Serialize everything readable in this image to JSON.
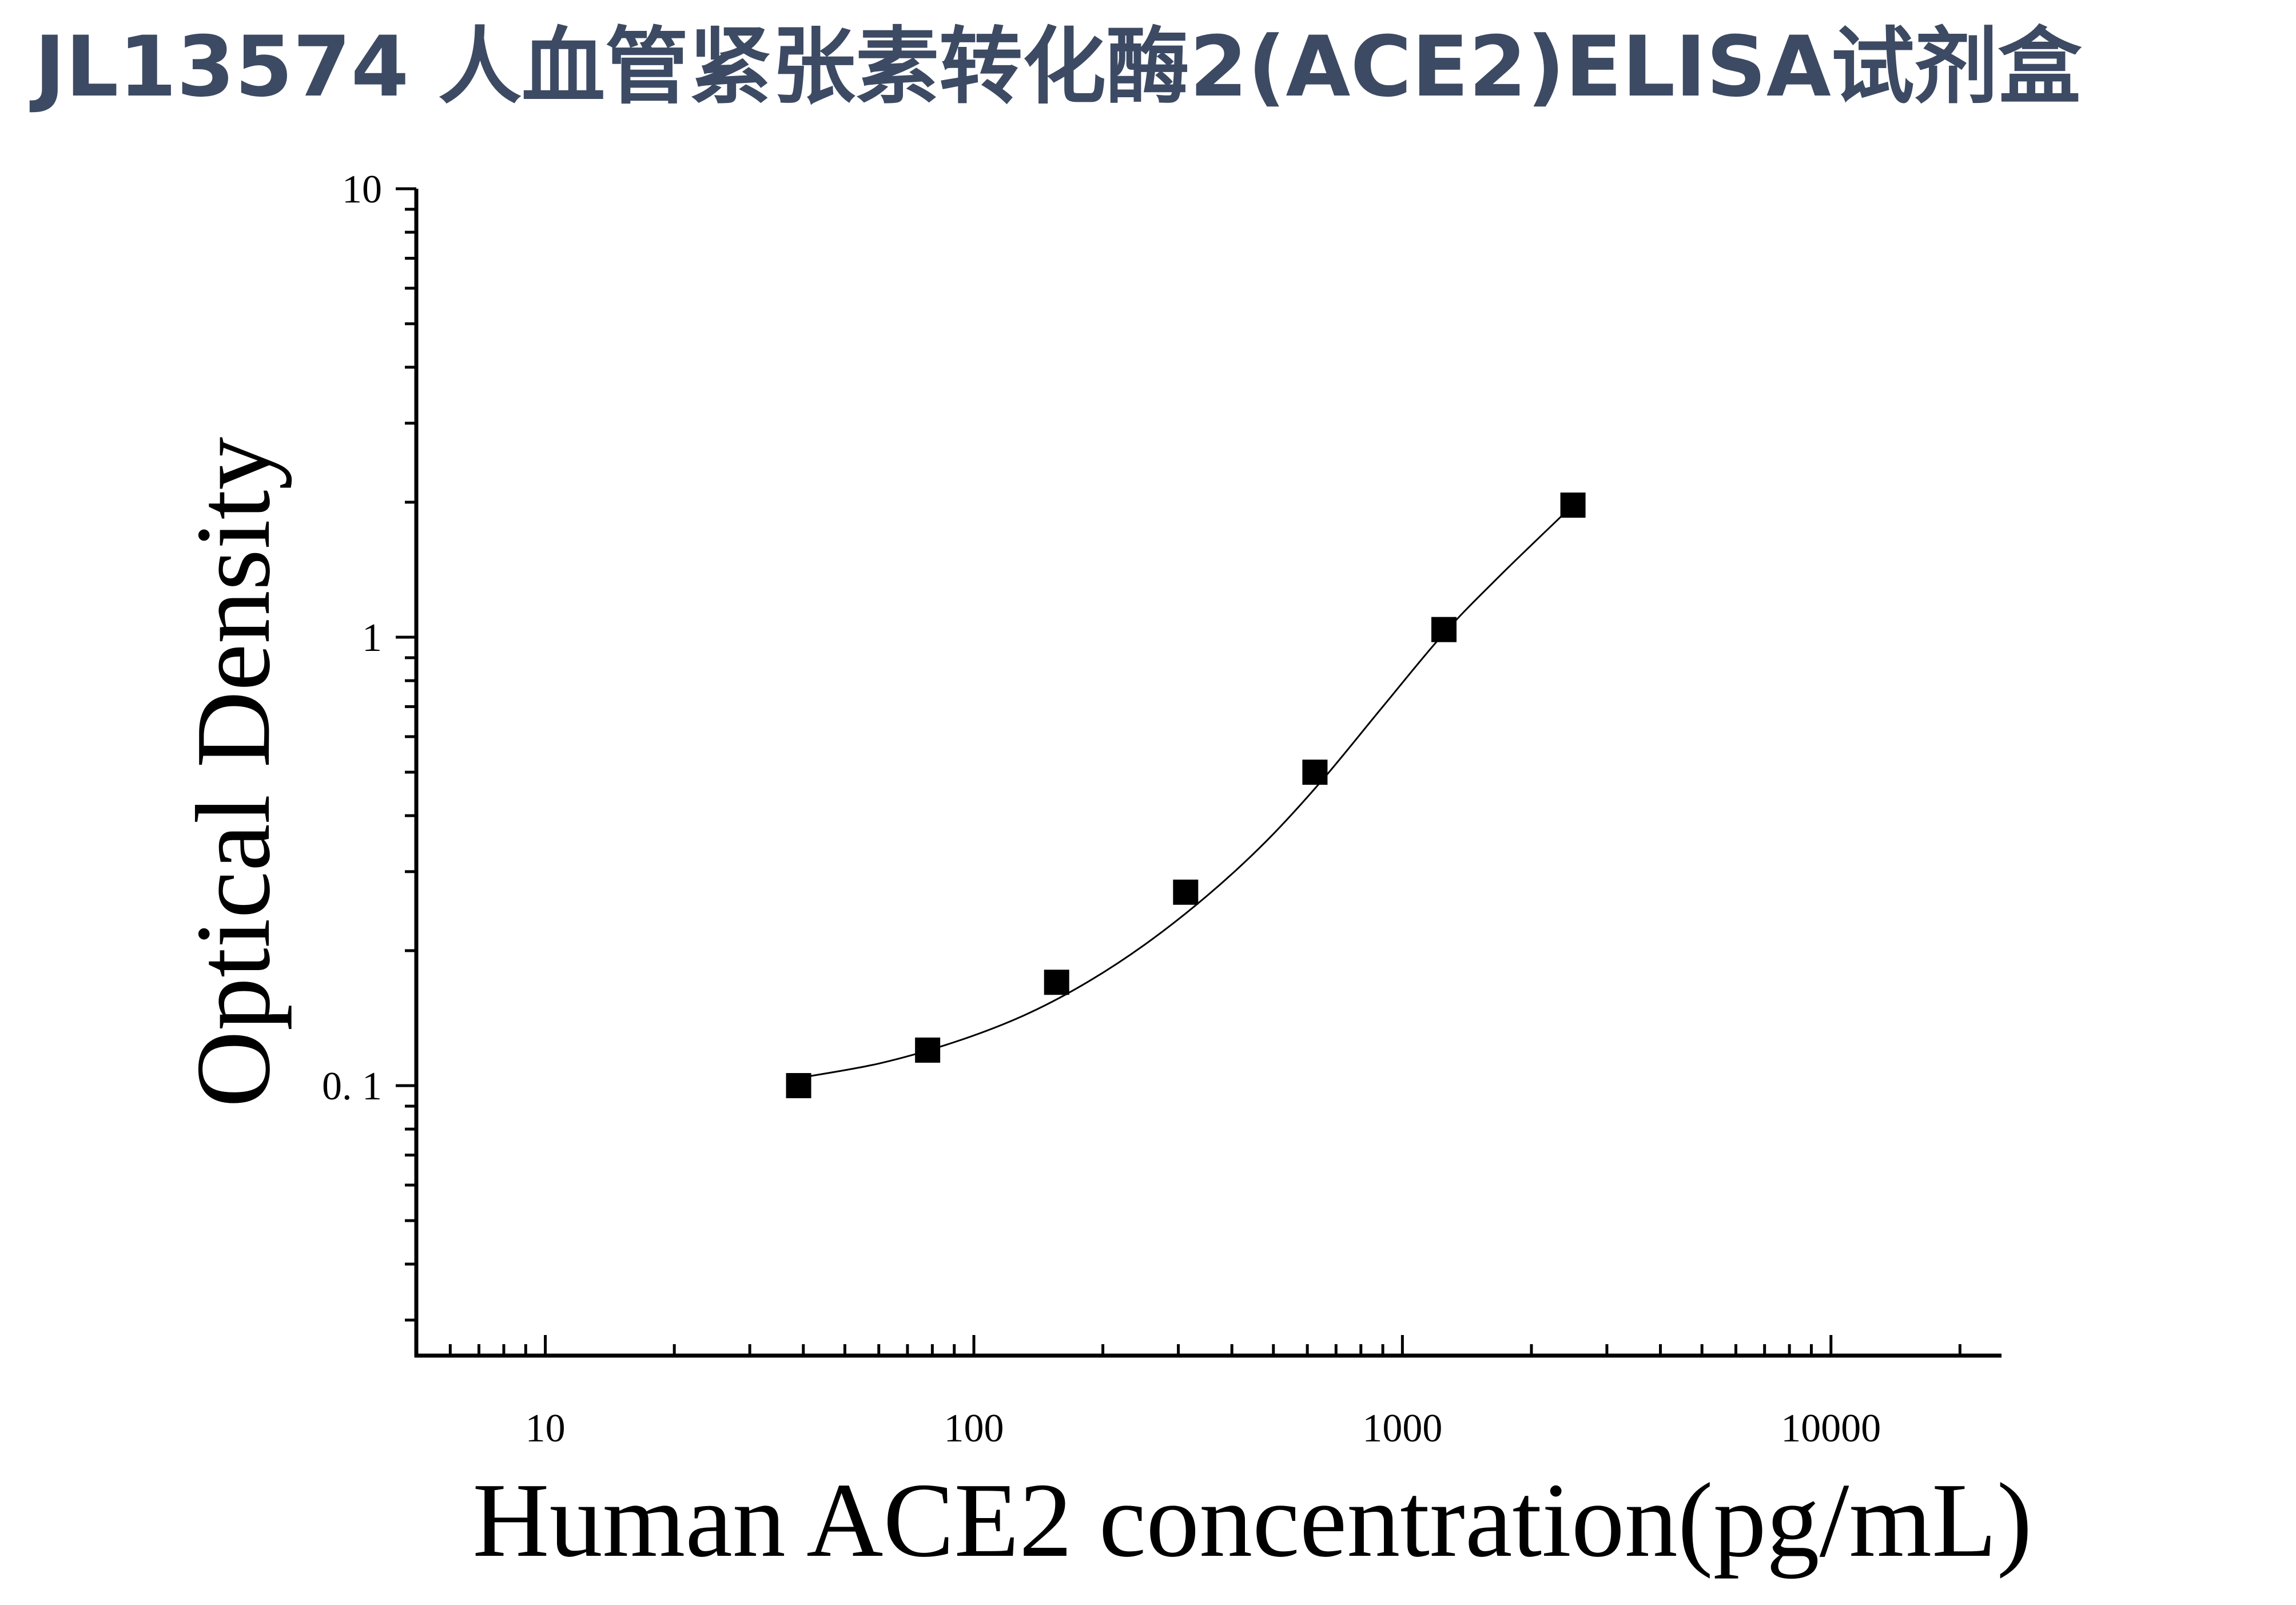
{
  "title": "JL13574 人血管紧张素转化酶2(ACE2)ELISA试剂盒",
  "colors": {
    "title": "#3d4a63",
    "axis": "#000000",
    "marker": "#000000",
    "curve": "#000000"
  },
  "chart_data": {
    "type": "scatter",
    "title": "JL13574 人血管紧张素转化酶2(ACE2)ELISA试剂盒",
    "xlabel": "Human ACE2 concentration(pg/mL)",
    "ylabel": "Optical Density",
    "xscale": "log",
    "yscale": "log",
    "xlim": [
      5,
      25000
    ],
    "ylim": [
      0.025,
      10
    ],
    "xticks": [
      10,
      100,
      1000,
      10000
    ],
    "xtick_labels": [
      "10",
      "100",
      "1000",
      "10000"
    ],
    "yticks": [
      0.1,
      1,
      10
    ],
    "ytick_labels": [
      "0. 1",
      "1",
      "10"
    ],
    "grid": false,
    "legend": "none",
    "series": [
      {
        "marker": "square",
        "x": [
          39,
          78,
          156,
          312,
          625,
          1250,
          2500
        ],
        "y": [
          0.1,
          0.12,
          0.17,
          0.27,
          0.5,
          1.04,
          1.97
        ]
      }
    ],
    "fit_curve": {
      "type": "line",
      "x": [
        39,
        60,
        90,
        130,
        180,
        250,
        350,
        480,
        650,
        900,
        1250,
        1700,
        2500
      ],
      "y": [
        0.104,
        0.112,
        0.125,
        0.143,
        0.168,
        0.206,
        0.265,
        0.35,
        0.48,
        0.7,
        1.02,
        1.38,
        1.97
      ]
    }
  }
}
